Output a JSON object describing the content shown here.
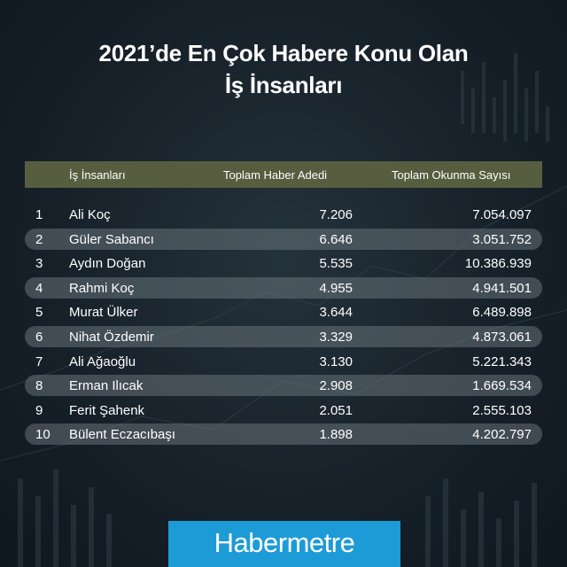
{
  "title": {
    "line1": "2021’de En Çok Habere Konu Olan",
    "line2": "İş İnsanları"
  },
  "table": {
    "headers": [
      "İş İnsanları",
      "Toplam Haber Adedi",
      "Toplam Okunma Sayısı"
    ],
    "header_color": "#565e3f",
    "row_band_color": "#78828a"
  },
  "chart_data": {
    "type": "table",
    "columns": [
      "İş İnsanları",
      "Toplam Haber Adedi",
      "Toplam Okunma Sayısı"
    ],
    "rows": [
      {
        "rank": "1",
        "name": "Ali Koç",
        "haber": "7.206",
        "okuma": "7.054.097"
      },
      {
        "rank": "2",
        "name": "Güler Sabancı",
        "haber": "6.646",
        "okuma": "3.051.752"
      },
      {
        "rank": "3",
        "name": "Aydın Doğan",
        "haber": "5.535",
        "okuma": "10.386.939"
      },
      {
        "rank": "4",
        "name": "Rahmi Koç",
        "haber": "4.955",
        "okuma": "4.941.501"
      },
      {
        "rank": "5",
        "name": "Murat Ülker",
        "haber": "3.644",
        "okuma": "6.489.898"
      },
      {
        "rank": "6",
        "name": "Nihat Özdemir",
        "haber": "3.329",
        "okuma": "4.873.061"
      },
      {
        "rank": "7",
        "name": "Ali Ağaoğlu",
        "haber": "3.130",
        "okuma": "5.221.343"
      },
      {
        "rank": "8",
        "name": "Erman Ilıcak",
        "haber": "2.908",
        "okuma": "1.669.534"
      },
      {
        "rank": "9",
        "name": "Ferit Şahenk",
        "haber": "2.051",
        "okuma": "2.555.103"
      },
      {
        "rank": "10",
        "name": "Bülent Eczacıbaşı",
        "haber": "1.898",
        "okuma": "4.202.797"
      }
    ]
  },
  "logo": {
    "text": "Habermetre",
    "color": "#1d9bd7"
  }
}
